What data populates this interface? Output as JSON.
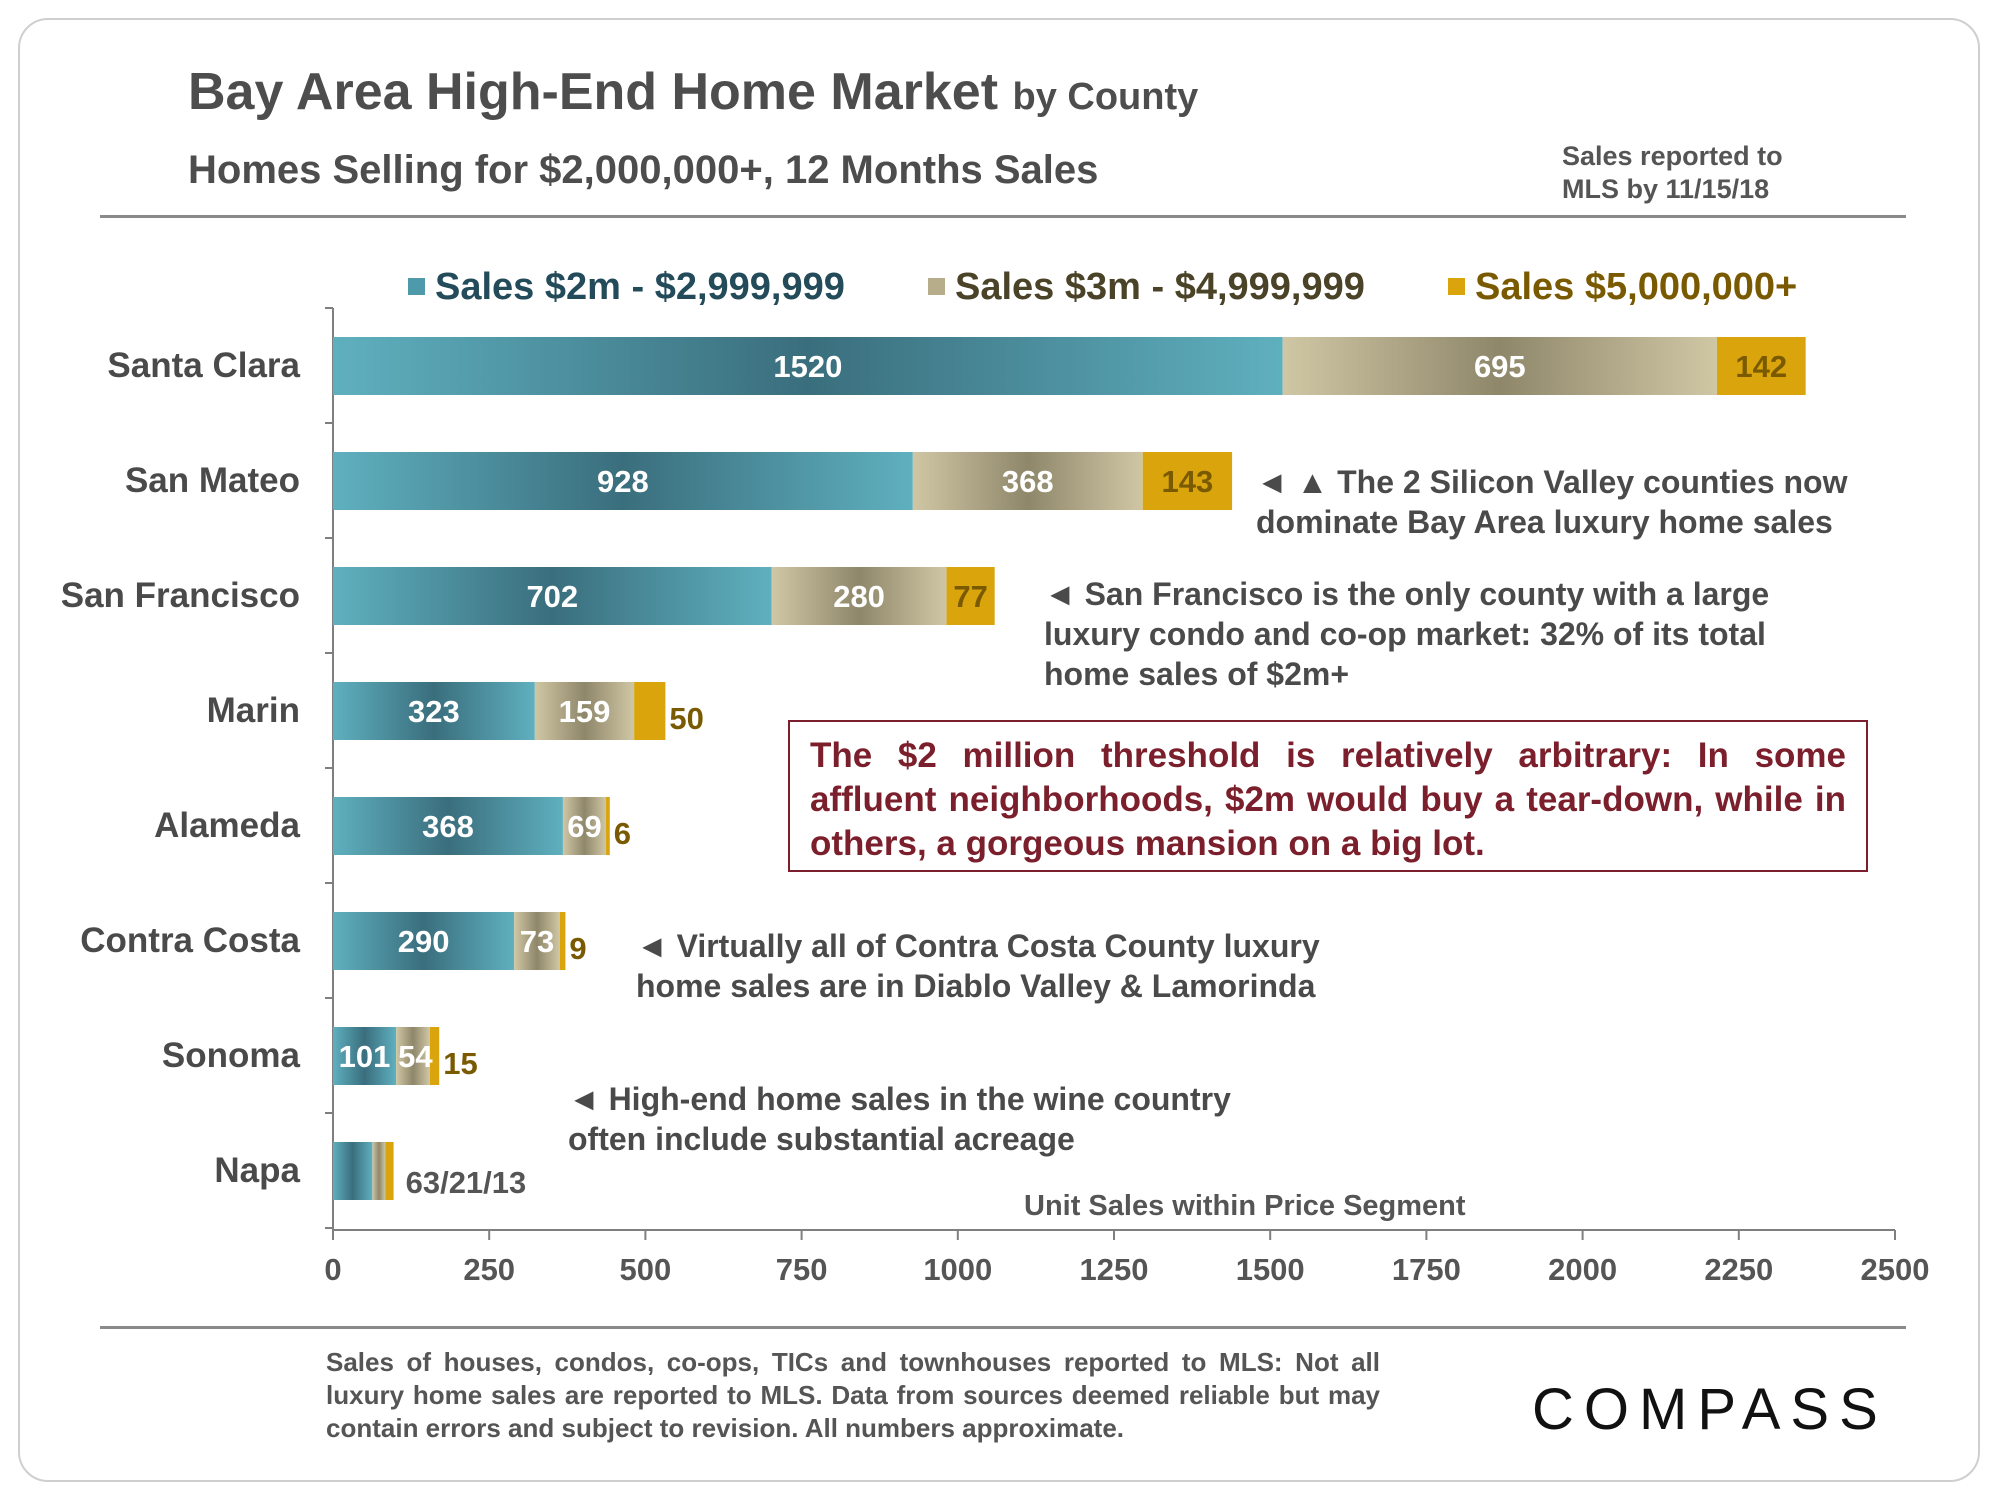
{
  "header": {
    "title": "Bay Area High-End Home Market",
    "title_suffix": "by County",
    "subtitle": "Homes Selling for $2,000,000+, 12 Months Sales",
    "reported_line1": "Sales reported to",
    "reported_line2": "MLS by 11/15/18"
  },
  "colors": {
    "seg1": "#4f9aaa",
    "seg2": "#b8ad8a",
    "seg3": "#d9a40c",
    "seg1_text": "#234b5a",
    "seg2_text": "#4a4328",
    "seg3_text": "#7a5a00",
    "callout": "#7a1f2b"
  },
  "chart_data": {
    "type": "bar",
    "orientation": "horizontal",
    "stacked": true,
    "title": "Bay Area High-End Home Market by County",
    "xlabel": "Unit Sales within Price Segment",
    "ylabel": "",
    "xlim": [
      0,
      2500
    ],
    "xticks": [
      0,
      250,
      500,
      750,
      1000,
      1250,
      1500,
      1750,
      2000,
      2250,
      2500
    ],
    "categories": [
      "Santa Clara",
      "San Mateo",
      "San Francisco",
      "Marin",
      "Alameda",
      "Contra Costa",
      "Sonoma",
      "Napa"
    ],
    "series": [
      {
        "name": "Sales $2m - $2,999,999",
        "values": [
          1520,
          928,
          702,
          323,
          368,
          290,
          101,
          63
        ]
      },
      {
        "name": "Sales $3m - $4,999,999",
        "values": [
          695,
          368,
          280,
          159,
          69,
          73,
          54,
          21
        ]
      },
      {
        "name": "Sales $5,000,000+",
        "values": [
          142,
          143,
          77,
          50,
          6,
          9,
          15,
          13
        ]
      }
    ],
    "napa_label": "63/21/13"
  },
  "annotations": {
    "silicon_valley": [
      "◄ ▲ The 2 Silicon Valley counties now",
      "dominate Bay Area luxury home sales"
    ],
    "san_francisco": [
      "◄ San Francisco is the only county with a large",
      "luxury condo and co-op market: 32% of its total",
      "home sales of $2m+"
    ],
    "contra_costa": [
      "◄ Virtually all of Contra Costa County luxury",
      "home sales are in Diablo Valley & Lamorinda"
    ],
    "wine_country": [
      "◄ High-end home sales in the wine country",
      "often include substantial acreage"
    ],
    "threshold_box": "The $2 million threshold is relatively arbitrary: In some affluent neighborhoods, $2m would buy a tear-down, while in others, a gorgeous mansion on a big lot."
  },
  "footer": {
    "disclaimer": "Sales of houses, condos, co-ops, TICs and townhouses reported to MLS: Not all luxury home sales are reported to MLS. Data from sources deemed reliable but may contain errors and subject to revision. All numbers approximate.",
    "logo": "COMPASS"
  }
}
